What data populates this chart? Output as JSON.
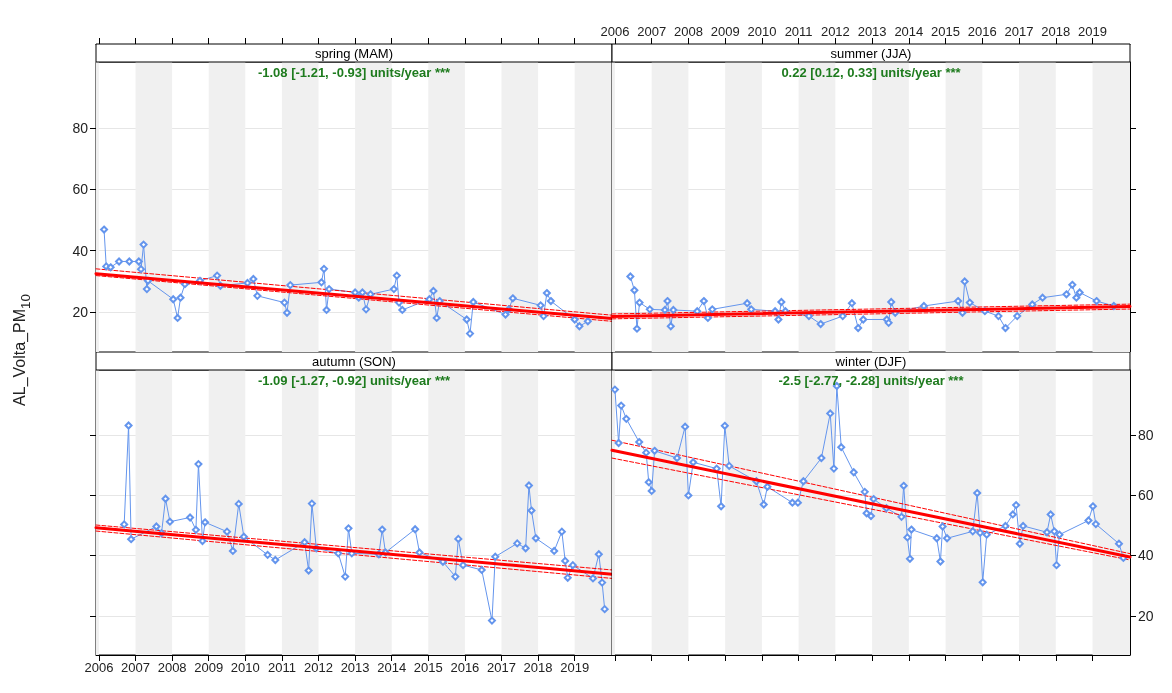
{
  "chart_data": [
    {
      "type": "line",
      "title": "spring (MAM)",
      "ylabel": "AL_Volta_PM$_{10}$",
      "annotations": [
        "-1.08 [-1.21, -0.93] units/year ***"
      ],
      "xlim": [
        2005.92,
        2020.02
      ],
      "ylim": [
        7,
        101.5
      ],
      "xticks": [
        2006,
        2007,
        2008,
        2009,
        2010,
        2011,
        2012,
        2013,
        2014,
        2015,
        2016,
        2017,
        2018,
        2019
      ],
      "yticks": [
        20,
        40,
        60,
        80
      ],
      "grid": "y",
      "tick_labels": "y",
      "bands": [
        {
          "axis": "x",
          "from": 2005.92,
          "to": 2006,
          "color": "#f0f0f0"
        },
        {
          "axis": "x",
          "from": 2007,
          "to": 2008,
          "color": "#f0f0f0"
        },
        {
          "axis": "x",
          "from": 2009,
          "to": 2010,
          "color": "#f0f0f0"
        },
        {
          "axis": "x",
          "from": 2011,
          "to": 2012,
          "color": "#f0f0f0"
        },
        {
          "axis": "x",
          "from": 2013,
          "to": 2014,
          "color": "#f0f0f0"
        },
        {
          "axis": "x",
          "from": 2015,
          "to": 2016,
          "color": "#f0f0f0"
        },
        {
          "axis": "x",
          "from": 2017,
          "to": 2018,
          "color": "#f0f0f0"
        },
        {
          "axis": "x",
          "from": 2019,
          "to": 2020.02,
          "color": "#f0f0f0"
        }
      ],
      "series": [
        {
          "type": "line",
          "color": "#6495ed",
          "marker": "diamond",
          "x": [
            2006.14,
            2006.2,
            2006.32,
            2006.55,
            2006.83,
            2007.09,
            2007.15,
            2007.22,
            2007.31,
            2007.34,
            2008.03,
            2008.15,
            2008.23,
            2008.35,
            2008.76,
            2009.23,
            2009.32,
            2010.06,
            2010.22,
            2010.33,
            2011.07,
            2011.14,
            2011.23,
            2012.08,
            2012.15,
            2012.22,
            2012.29,
            2013.0,
            2013.1,
            2013.2,
            2013.3,
            2013.42,
            2014.06,
            2014.14,
            2014.2,
            2014.29,
            2015.03,
            2015.14,
            2015.23,
            2015.31,
            2016.05,
            2016.14,
            2016.23,
            2017.11,
            2017.2,
            2017.31,
            2018.07,
            2018.15,
            2018.24,
            2018.35,
            2019.0,
            2019.13,
            2019.36
          ],
          "values": [
            46.9,
            34.9,
            34.6,
            36.5,
            36.5,
            36.5,
            34,
            42,
            27.5,
            30.2,
            24.2,
            18.1,
            24.7,
            29.1,
            30.2,
            31.9,
            28.6,
            29.5,
            30.8,
            25.3,
            23.1,
            19.8,
            28.8,
            29.7,
            34.1,
            20.7,
            27.5,
            26.4,
            24.7,
            26.4,
            20.9,
            25.8,
            27.5,
            31.9,
            23.1,
            20.7,
            24.2,
            26.9,
            18.1,
            23.6,
            17.6,
            13.0,
            23.3,
            19.2,
            20.9,
            24.5,
            22.2,
            18.7,
            26.2,
            23.6,
            17.6,
            15.4,
            17.0
          ]
        },
        {
          "type": "line",
          "color": "#ff0000",
          "marker": "none",
          "x": [
            2005.92,
            2020.02
          ],
          "values": [
            32.5,
            17.9
          ]
        },
        {
          "type": "line",
          "color": "#ff0000",
          "marker": "none",
          "line_style": "dashed",
          "x": [
            2005.92,
            2020.02
          ],
          "values": [
            34.1,
            19
          ]
        },
        {
          "type": "line",
          "color": "#ff0000",
          "marker": "none",
          "line_style": "dashed",
          "x": [
            2005.92,
            2020.02
          ],
          "values": [
            31.9,
            17
          ]
        }
      ]
    },
    {
      "type": "line",
      "title": "summer (JJA)",
      "annotations": [
        "0.22 [0.12, 0.33] units/year ***"
      ],
      "xlim": [
        2005.92,
        2020.02
      ],
      "ylim": [
        7,
        101.5
      ],
      "xticks": [
        2006,
        2007,
        2008,
        2009,
        2010,
        2011,
        2012,
        2013,
        2014,
        2015,
        2016,
        2017,
        2018,
        2019
      ],
      "yticks": [
        20,
        40,
        60,
        80
      ],
      "grid": "y",
      "tick_labels": "x",
      "bands": [
        {
          "axis": "x",
          "from": 2005.92,
          "to": 2006,
          "color": "#f0f0f0"
        },
        {
          "axis": "x",
          "from": 2007,
          "to": 2008,
          "color": "#f0f0f0"
        },
        {
          "axis": "x",
          "from": 2009,
          "to": 2010,
          "color": "#f0f0f0"
        },
        {
          "axis": "x",
          "from": 2011,
          "to": 2012,
          "color": "#f0f0f0"
        },
        {
          "axis": "x",
          "from": 2013,
          "to": 2014,
          "color": "#f0f0f0"
        },
        {
          "axis": "x",
          "from": 2015,
          "to": 2016,
          "color": "#f0f0f0"
        },
        {
          "axis": "x",
          "from": 2017,
          "to": 2018,
          "color": "#f0f0f0"
        },
        {
          "axis": "x",
          "from": 2019,
          "to": 2020.02,
          "color": "#f0f0f0"
        }
      ],
      "series": [
        {
          "type": "line",
          "color": "#6495ed",
          "marker": "diamond",
          "x": [
            2006.42,
            2006.53,
            2006.6,
            2006.67,
            2006.95,
            2007.36,
            2007.43,
            2007.52,
            2007.59,
            2008.24,
            2008.42,
            2008.53,
            2008.65,
            2009.6,
            2009.71,
            2010.36,
            2010.45,
            2010.53,
            2010.64,
            2011.28,
            2011.6,
            2012.2,
            2012.45,
            2012.62,
            2012.76,
            2013.4,
            2013.45,
            2013.52,
            2013.63,
            2014.41,
            2015.34,
            2015.46,
            2015.52,
            2015.66,
            2016.07,
            2016.44,
            2016.63,
            2016.95,
            2017.36,
            2017.64,
            2018.29,
            2018.45,
            2018.56,
            2018.65,
            2019.11,
            2019.58
          ],
          "values": [
            31.6,
            27.1,
            14.6,
            23.1,
            20.9,
            20.7,
            23.6,
            15.4,
            20.7,
            20.3,
            23.6,
            18.1,
            20.9,
            22.9,
            20.9,
            20.3,
            17.6,
            23.3,
            20.3,
            18.7,
            16.1,
            18.7,
            22.9,
            14.8,
            17.6,
            17.6,
            16.5,
            23.3,
            19.8,
            22.0,
            23.6,
            19.8,
            30.0,
            23.1,
            20.3,
            18.7,
            14.8,
            18.7,
            22.5,
            24.7,
            25.8,
            28.9,
            24.7,
            26.4,
            23.6,
            22.0
          ]
        },
        {
          "type": "line",
          "color": "#ff0000",
          "marker": "none",
          "x": [
            2005.92,
            2020.02
          ],
          "values": [
            18.6,
            21.8
          ]
        },
        {
          "type": "line",
          "color": "#ff0000",
          "marker": "none",
          "line_style": "dashed",
          "x": [
            2005.92,
            2020.02
          ],
          "values": [
            19.4,
            22.6
          ]
        },
        {
          "type": "line",
          "color": "#ff0000",
          "marker": "none",
          "line_style": "dashed",
          "x": [
            2005.92,
            2020.02
          ],
          "values": [
            17.8,
            21.0
          ]
        }
      ]
    },
    {
      "type": "line",
      "title": "autumn (SON)",
      "annotations": [
        "-1.09 [-1.27, -0.92] units/year ***"
      ],
      "xlim": [
        2005.92,
        2020.02
      ],
      "ylim": [
        7,
        101.5
      ],
      "xticks": [
        2006,
        2007,
        2008,
        2009,
        2010,
        2011,
        2012,
        2013,
        2014,
        2015,
        2016,
        2017,
        2018,
        2019
      ],
      "yticks": [
        20,
        40,
        60,
        80
      ],
      "grid": "y",
      "tick_labels": "x",
      "bands": [
        {
          "axis": "x",
          "from": 2005.92,
          "to": 2006,
          "color": "#f0f0f0"
        },
        {
          "axis": "x",
          "from": 2007,
          "to": 2008,
          "color": "#f0f0f0"
        },
        {
          "axis": "x",
          "from": 2009,
          "to": 2010,
          "color": "#f0f0f0"
        },
        {
          "axis": "x",
          "from": 2011,
          "to": 2012,
          "color": "#f0f0f0"
        },
        {
          "axis": "x",
          "from": 2013,
          "to": 2014,
          "color": "#f0f0f0"
        },
        {
          "axis": "x",
          "from": 2015,
          "to": 2016,
          "color": "#f0f0f0"
        },
        {
          "axis": "x",
          "from": 2017,
          "to": 2018,
          "color": "#f0f0f0"
        },
        {
          "axis": "x",
          "from": 2019,
          "to": 2020.02,
          "color": "#f0f0f0"
        }
      ],
      "series": [
        {
          "type": "line",
          "color": "#6495ed",
          "marker": "diamond",
          "x": [
            2006.69,
            2006.81,
            2006.88,
            2007.57,
            2007.71,
            2007.82,
            2007.94,
            2008.49,
            2008.65,
            2008.72,
            2008.83,
            2008.9,
            2009.5,
            2009.66,
            2009.82,
            2009.96,
            2010.61,
            2010.82,
            2011.62,
            2011.73,
            2011.82,
            2011.94,
            2012.54,
            2012.73,
            2012.82,
            2012.91,
            2013.65,
            2013.74,
            2013.83,
            2014.64,
            2014.76,
            2015.4,
            2015.74,
            2015.82,
            2015.95,
            2016.46,
            2016.74,
            2016.83,
            2017.43,
            2017.66,
            2017.75,
            2017.82,
            2017.94,
            2018.44,
            2018.65,
            2018.74,
            2018.81,
            2018.95,
            2019.5,
            2019.66,
            2019.75,
            2019.82
          ],
          "values": [
            50.3,
            83.1,
            45.4,
            49.6,
            47.4,
            58.8,
            51.2,
            52.6,
            48.5,
            70.3,
            44.8,
            51.0,
            47.9,
            41.5,
            57.1,
            46.2,
            40.2,
            38.5,
            44.4,
            35.0,
            57.2,
            42.4,
            40.7,
            33.0,
            49.0,
            40.7,
            40.4,
            48.6,
            41.0,
            48.7,
            41.0,
            37.9,
            33.0,
            45.5,
            36.8,
            35.2,
            18.4,
            39.6,
            44.0,
            42.4,
            63.2,
            54.9,
            45.7,
            41.5,
            47.9,
            38.2,
            32.6,
            36.8,
            32.4,
            40.4,
            31.0,
            22.2
          ]
        },
        {
          "type": "line",
          "color": "#ff0000",
          "marker": "none",
          "x": [
            2005.92,
            2020.02
          ],
          "values": [
            49.2,
            33.8
          ]
        },
        {
          "type": "line",
          "color": "#ff0000",
          "marker": "none",
          "line_style": "dashed",
          "x": [
            2005.92,
            2020.02
          ],
          "values": [
            50.1,
            35.2
          ]
        },
        {
          "type": "line",
          "color": "#ff0000",
          "marker": "none",
          "line_style": "dashed",
          "x": [
            2005.92,
            2020.02
          ],
          "values": [
            48.1,
            32.4
          ]
        }
      ]
    },
    {
      "type": "line",
      "title": "winter (DJF)",
      "annotations": [
        "-2.5 [-2.77, -2.28] units/year ***"
      ],
      "xlim": [
        2005.92,
        2020.02
      ],
      "ylim": [
        7,
        101.5
      ],
      "xticks": [
        2006,
        2007,
        2008,
        2009,
        2010,
        2011,
        2012,
        2013,
        2014,
        2015,
        2016,
        2017,
        2018,
        2019
      ],
      "yticks": [
        20,
        40,
        60,
        80
      ],
      "grid": "y",
      "tick_labels": "y",
      "bands": [
        {
          "axis": "x",
          "from": 2005.92,
          "to": 2006,
          "color": "#f0f0f0"
        },
        {
          "axis": "x",
          "from": 2007,
          "to": 2008,
          "color": "#f0f0f0"
        },
        {
          "axis": "x",
          "from": 2009,
          "to": 2010,
          "color": "#f0f0f0"
        },
        {
          "axis": "x",
          "from": 2011,
          "to": 2012,
          "color": "#f0f0f0"
        },
        {
          "axis": "x",
          "from": 2013,
          "to": 2014,
          "color": "#f0f0f0"
        },
        {
          "axis": "x",
          "from": 2015,
          "to": 2016,
          "color": "#f0f0f0"
        },
        {
          "axis": "x",
          "from": 2017,
          "to": 2018,
          "color": "#f0f0f0"
        },
        {
          "axis": "x",
          "from": 2019,
          "to": 2020.02,
          "color": "#f0f0f0"
        }
      ],
      "series": [
        {
          "type": "line",
          "color": "#6495ed",
          "marker": "diamond",
          "x": [
            2006.0,
            2006.1,
            2006.17,
            2006.31,
            2006.66,
            2006.85,
            2006.92,
            2007.0,
            2007.08,
            2007.69,
            2007.91,
            2008.0,
            2008.13,
            2008.77,
            2008.89,
            2008.99,
            2009.11,
            2009.85,
            2010.05,
            2010.15,
            2010.83,
            2010.98,
            2011.13,
            2011.62,
            2011.86,
            2011.96,
            2012.04,
            2012.16,
            2012.5,
            2012.8,
            2012.85,
            2012.97,
            2013.04,
            2013.39,
            2013.8,
            2013.86,
            2013.96,
            2014.03,
            2014.07,
            2014.76,
            2014.86,
            2014.92,
            2015.04,
            2015.74,
            2015.86,
            2015.94,
            2016.01,
            2016.12,
            2016.63,
            2016.83,
            2016.92,
            2017.02,
            2017.11,
            2017.76,
            2017.86,
            2017.96,
            2018.02,
            2018.1,
            2018.89,
            2019.01,
            2019.09,
            2019.72,
            2019.84
          ],
          "values": [
            95.0,
            77.3,
            89.7,
            85.3,
            77.6,
            74.1,
            64.3,
            61.4,
            74.7,
            72.3,
            82.7,
            59.9,
            70.9,
            68.8,
            56.3,
            83.0,
            69.7,
            64.6,
            56.9,
            62.8,
            57.5,
            57.5,
            64.6,
            72.3,
            87.1,
            68.8,
            96.2,
            75.9,
            67.6,
            61.1,
            54.0,
            53.1,
            58.7,
            55.7,
            52.8,
            63.1,
            46.0,
            38.9,
            48.6,
            45.7,
            38.0,
            49.6,
            45.7,
            48.0,
            60.7,
            47.5,
            31.1,
            46.9,
            49.8,
            53.6,
            56.7,
            43.9,
            49.8,
            47.7,
            53.6,
            48.0,
            36.8,
            46.9,
            51.6,
            56.3,
            50.4,
            43.9,
            39.2
          ]
        },
        {
          "type": "line",
          "color": "#ff0000",
          "marker": "none",
          "x": [
            2005.92,
            2020.02
          ],
          "values": [
            74.9,
            39.5
          ]
        },
        {
          "type": "line",
          "color": "#ff0000",
          "marker": "none",
          "line_style": "dashed",
          "x": [
            2005.92,
            2020.02
          ],
          "values": [
            78.2,
            40.6
          ]
        },
        {
          "type": "line",
          "color": "#ff0000",
          "marker": "none",
          "line_style": "dashed",
          "x": [
            2005.92,
            2020.02
          ],
          "values": [
            72.3,
            38.5
          ]
        }
      ]
    }
  ]
}
